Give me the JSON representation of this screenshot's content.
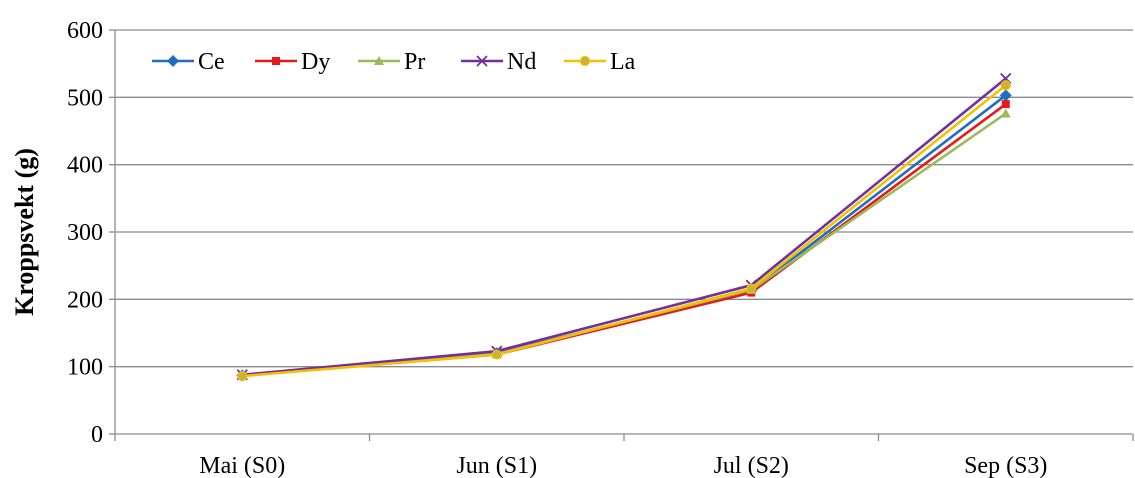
{
  "chart_data": {
    "type": "line",
    "title": "",
    "xlabel": "",
    "ylabel": "Kroppsvekt (g)",
    "ylim": [
      0,
      600
    ],
    "yticks": [
      0,
      100,
      200,
      300,
      400,
      500,
      600
    ],
    "categories": [
      "Mai (S0)",
      "Jun (S1)",
      "Jul (S2)",
      "Sep (S3)"
    ],
    "grid": "horizontal",
    "legend_position": "top-left",
    "series": [
      {
        "name": "Ce",
        "color": "#1f6fbf",
        "marker": "diamond",
        "values": [
          87,
          120,
          213,
          503
        ]
      },
      {
        "name": "Dy",
        "color": "#e41a1c",
        "marker": "square",
        "values": [
          87,
          118,
          210,
          490
        ]
      },
      {
        "name": "Pr",
        "color": "#9bbb59",
        "marker": "triangle",
        "values": [
          87,
          119,
          214,
          476
        ]
      },
      {
        "name": "Nd",
        "color": "#7030a0",
        "marker": "x",
        "values": [
          88,
          123,
          221,
          528
        ]
      },
      {
        "name": "La",
        "color": "#f5c000",
        "marker": "circle",
        "values": [
          86,
          118,
          216,
          518
        ]
      }
    ]
  }
}
